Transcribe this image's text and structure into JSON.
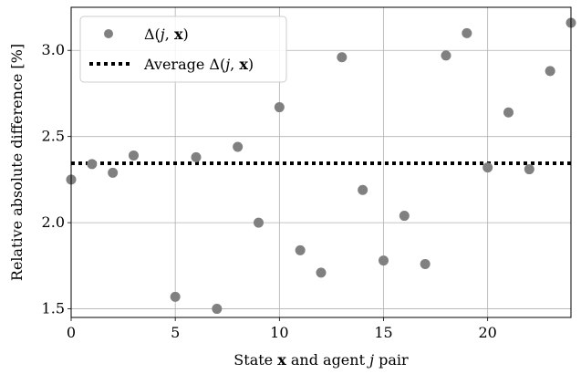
{
  "chart_data": {
    "type": "scatter",
    "xlabel": "State x and agent j pair",
    "ylabel": "Relative absolute difference [%]",
    "xlim": [
      0,
      24
    ],
    "ylim": [
      1.45,
      3.25
    ],
    "xticks": [
      0,
      5,
      10,
      15,
      20
    ],
    "yticks": [
      1.5,
      2.0,
      2.5,
      3.0
    ],
    "x_tick_labels": [
      "0",
      "5",
      "10",
      "15",
      "20"
    ],
    "y_tick_labels": [
      "1.5",
      "2.0",
      "2.5",
      "3.0"
    ],
    "grid": true,
    "legend_position": "top-left",
    "series": [
      {
        "name": "Δ(j, x)",
        "marker": "circle",
        "color": "#808080",
        "x": [
          0,
          1,
          2,
          3,
          4,
          5,
          6,
          7,
          8,
          9,
          10,
          11,
          12,
          13,
          14,
          15,
          16,
          17,
          18,
          19,
          20,
          21,
          22,
          23,
          24
        ],
        "y": [
          2.25,
          2.34,
          2.29,
          2.39,
          null,
          1.57,
          2.38,
          1.5,
          2.44,
          2.0,
          2.67,
          1.84,
          1.71,
          2.96,
          2.19,
          1.78,
          2.04,
          1.76,
          2.97,
          3.1,
          2.32,
          2.64,
          2.31,
          2.88,
          3.16
        ]
      },
      {
        "name": "Average Δ(j, x)",
        "style": "dotted",
        "color": "#000000",
        "value": 2.345
      }
    ]
  }
}
